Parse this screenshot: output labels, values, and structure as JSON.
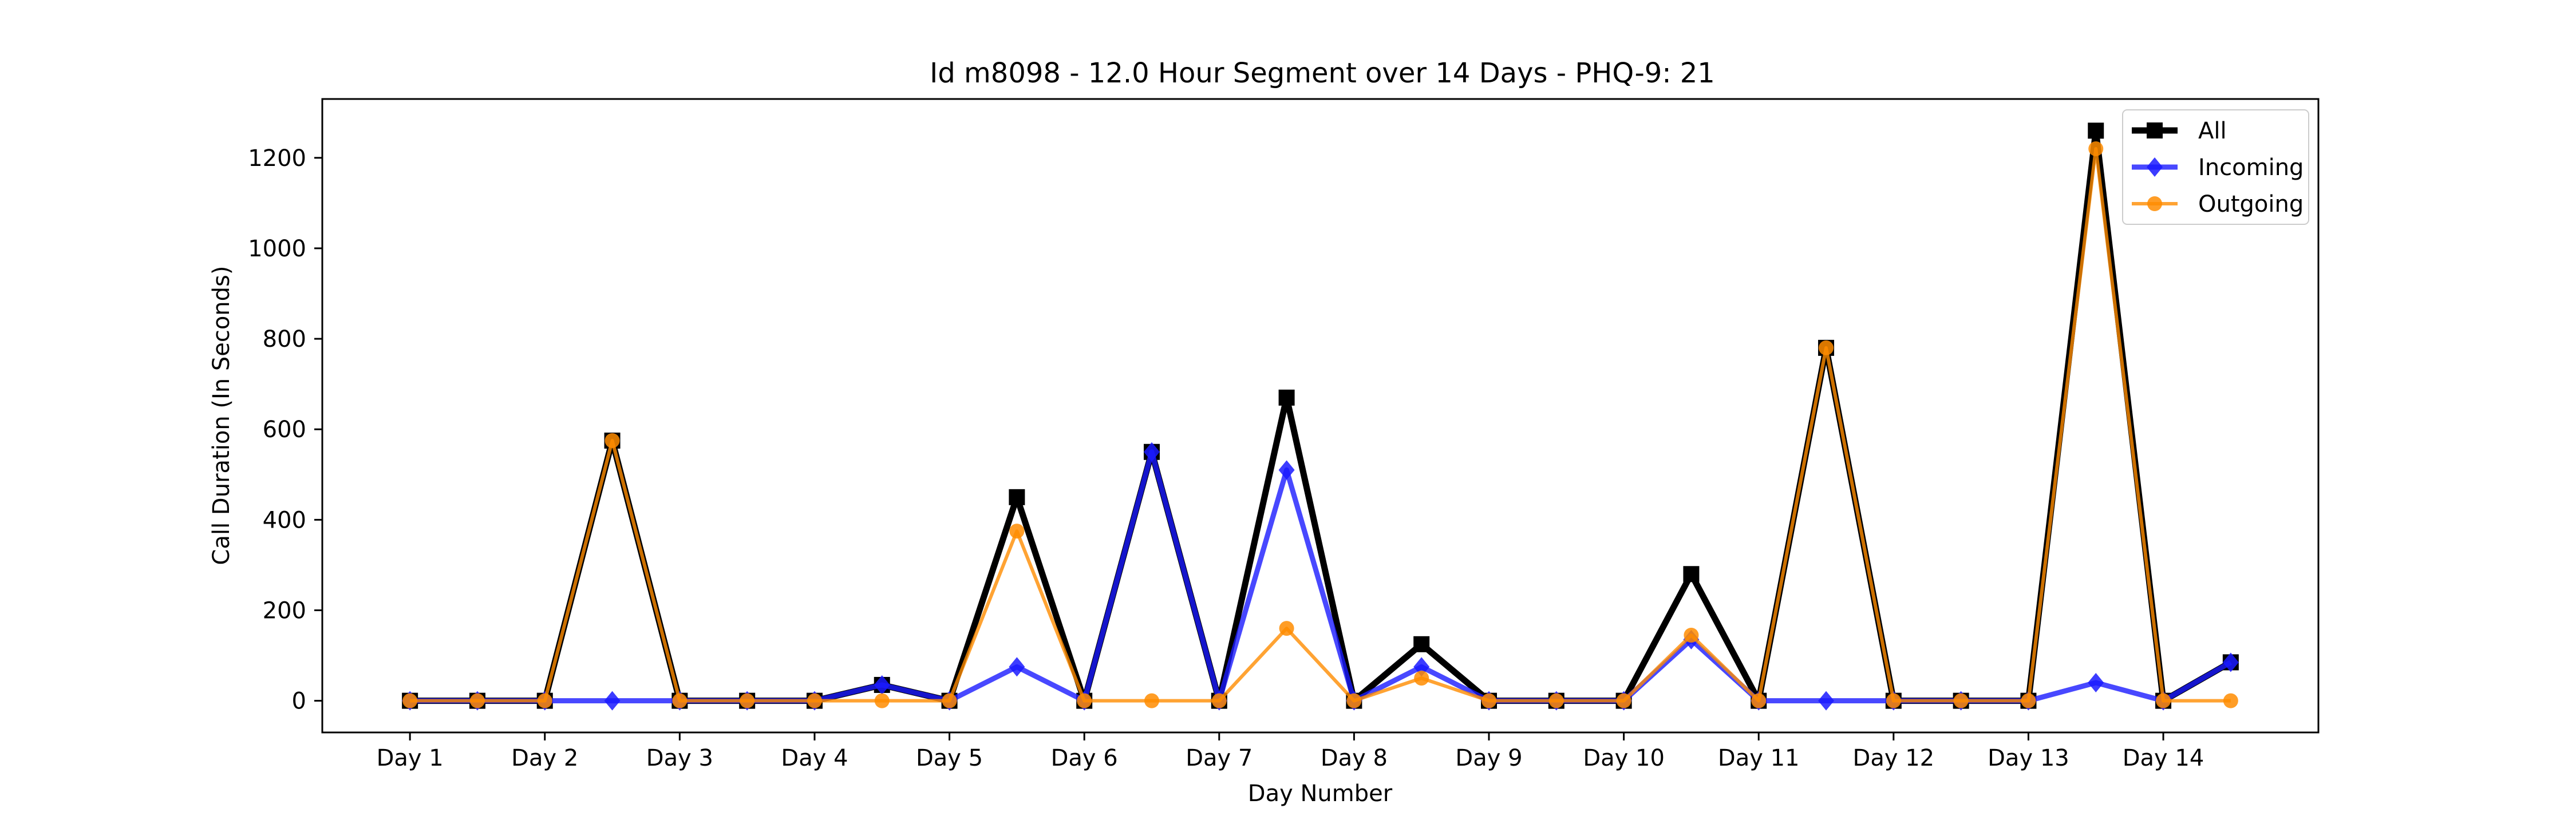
{
  "chart_data": {
    "type": "line",
    "title": "Id m8098 - 12.0 Hour Segment over 14 Days - PHQ-9: 21",
    "xlabel": "Day Number",
    "ylabel": "Call Duration (In Seconds)",
    "ylim": [
      -70,
      1330
    ],
    "yticks": [
      0,
      200,
      400,
      600,
      800,
      1000,
      1200
    ],
    "x_tick_labels": [
      "Day 1",
      "Day 2",
      "Day 3",
      "Day 4",
      "Day 5",
      "Day 6",
      "Day 7",
      "Day 8",
      "Day 9",
      "Day 10",
      "Day 11",
      "Day 12",
      "Day 13",
      "Day 14"
    ],
    "x": [
      1,
      1.5,
      2,
      2.5,
      3,
      3.5,
      4,
      4.5,
      5,
      5.5,
      6,
      6.5,
      7,
      7.5,
      8,
      8.5,
      9,
      9.5,
      10,
      10.5,
      11,
      11.5,
      12,
      12.5,
      13,
      13.5,
      14,
      14.5
    ],
    "legend_position": "top-right",
    "grid": false,
    "series": [
      {
        "name": "All",
        "color": "#000000",
        "marker": "square",
        "values": [
          0,
          0,
          0,
          575,
          0,
          0,
          0,
          35,
          0,
          450,
          0,
          550,
          0,
          670,
          0,
          125,
          0,
          0,
          0,
          280,
          0,
          780,
          0,
          0,
          0,
          1260,
          0,
          85
        ]
      },
      {
        "name": "Incoming",
        "color": "#1a1aff",
        "marker": "diamond",
        "values": [
          0,
          0,
          0,
          0,
          0,
          0,
          0,
          35,
          0,
          75,
          0,
          550,
          0,
          510,
          0,
          75,
          0,
          0,
          0,
          135,
          0,
          0,
          0,
          0,
          0,
          40,
          0,
          85
        ]
      },
      {
        "name": "Outgoing",
        "color": "#ff8c00",
        "marker": "circle",
        "values": [
          0,
          0,
          0,
          575,
          0,
          0,
          0,
          0,
          0,
          375,
          0,
          0,
          0,
          160,
          0,
          50,
          0,
          0,
          0,
          145,
          0,
          780,
          0,
          0,
          0,
          1220,
          0,
          0
        ]
      }
    ]
  }
}
